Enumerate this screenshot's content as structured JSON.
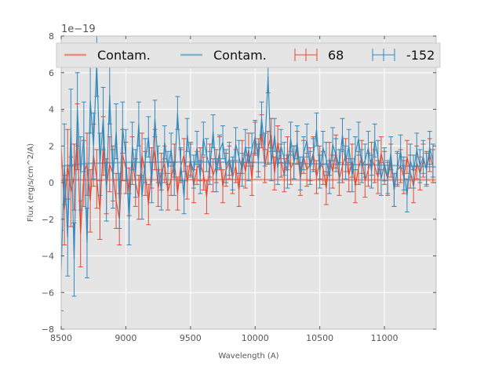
{
  "chart_data": {
    "type": "line",
    "title": "",
    "xlabel": "Wavelength (A)",
    "ylabel": "Flux (erg/s/cm^2/A)",
    "xlim": [
      8500,
      11400
    ],
    "ylim": [
      -8,
      8
    ],
    "y_scale_label": "1e−19",
    "x_ticks": [
      8500,
      9000,
      9500,
      10000,
      10500,
      11000
    ],
    "y_ticks": [
      -8,
      -6,
      -4,
      -2,
      0,
      2,
      4,
      6,
      8
    ],
    "y_tick_labels": [
      "−8",
      "−6",
      "−4",
      "−2",
      "0",
      "2",
      "4",
      "6",
      "8"
    ],
    "background_color": "#e5e5e5",
    "grid": true,
    "legend": {
      "placement": "top",
      "columns": 4
    },
    "series": [
      {
        "name": "Contam.",
        "kind": "contamination",
        "color": "#e8907c",
        "x": [
          8500,
          9000,
          9500,
          10000,
          10500,
          11000,
          11400
        ],
        "y": [
          0.15,
          0.15,
          0.16,
          0.16,
          0.15,
          0.15,
          0.15
        ]
      },
      {
        "name": "Contam.",
        "kind": "contamination",
        "color": "#7eb3d1",
        "x": [
          8500,
          8700,
          9000,
          9300,
          9600,
          10000,
          10300,
          10600,
          11000,
          11400
        ],
        "y": [
          0.9,
          1.05,
          1.1,
          1.12,
          1.12,
          1.1,
          1.05,
          1.0,
          0.95,
          0.85
        ]
      },
      {
        "name": "68",
        "kind": "spectrum",
        "color": "#e24a33",
        "x": [
          8500,
          8525,
          8550,
          8575,
          8600,
          8625,
          8650,
          8675,
          8700,
          8725,
          8750,
          8775,
          8800,
          8825,
          8850,
          8875,
          8900,
          8925,
          8950,
          8975,
          9000,
          9025,
          9050,
          9075,
          9100,
          9125,
          9150,
          9175,
          9200,
          9225,
          9250,
          9275,
          9300,
          9325,
          9350,
          9375,
          9400,
          9425,
          9450,
          9475,
          9500,
          9525,
          9550,
          9575,
          9600,
          9625,
          9650,
          9675,
          9700,
          9725,
          9750,
          9775,
          9800,
          9825,
          9850,
          9875,
          9900,
          9925,
          9950,
          9975,
          10000,
          10025,
          10050,
          10075,
          10100,
          10125,
          10150,
          10175,
          10200,
          10225,
          10250,
          10275,
          10300,
          10325,
          10350,
          10375,
          10400,
          10425,
          10450,
          10475,
          10500,
          10525,
          10550,
          10575,
          10600,
          10625,
          10650,
          10675,
          10700,
          10725,
          10750,
          10775,
          10800,
          10825,
          10850,
          10875,
          10900,
          10925,
          10950,
          10975,
          11000,
          11025,
          11050,
          11075,
          11100,
          11125,
          11150,
          11175,
          11200,
          11225,
          11250,
          11275,
          11300,
          11325,
          11350,
          11375
        ],
        "y": [
          2.0,
          -1.5,
          1.0,
          -0.5,
          0.3,
          2.5,
          -2.8,
          0.5,
          1.0,
          -1.0,
          1.5,
          0.2,
          -1.5,
          2.0,
          -0.2,
          1.0,
          0.5,
          -1.0,
          -2.0,
          1.5,
          0.8,
          -0.5,
          1.2,
          0.0,
          -0.8,
          1.5,
          0.5,
          -1.2,
          0.8,
          1.8,
          -0.3,
          0.6,
          1.0,
          -0.5,
          0.2,
          1.2,
          -0.6,
          0.9,
          1.5,
          0.0,
          1.3,
          -0.2,
          0.8,
          1.0,
          0.5,
          -0.8,
          1.2,
          0.4,
          0.9,
          1.6,
          -0.2,
          0.7,
          1.1,
          0.3,
          0.9,
          -0.4,
          1.4,
          0.6,
          1.8,
          0.2,
          2.4,
          1.5,
          2.8,
          0.9,
          1.9,
          2.6,
          0.5,
          2.2,
          1.2,
          0.4,
          1.6,
          0.8,
          1.1,
          1.9,
          0.2,
          1.4,
          0.7,
          1.0,
          1.6,
          0.3,
          1.1,
          0.8,
          -0.3,
          1.3,
          0.6,
          1.7,
          0.2,
          0.9,
          1.5,
          0.4,
          1.2,
          -0.2,
          0.8,
          1.4,
          0.1,
          0.7,
          1.3,
          0.9,
          0.3,
          1.6,
          0.8,
          0.2,
          1.2,
          -0.4,
          0.7,
          0.9,
          0.3,
          1.4,
          0.6,
          -0.2,
          1.1,
          0.5,
          1.2,
          0.8,
          1.5,
          0.9
        ],
        "err": [
          1.9,
          1.9,
          1.9,
          1.9,
          1.8,
          1.8,
          1.8,
          1.8,
          1.7,
          1.7,
          1.7,
          1.6,
          1.6,
          1.6,
          1.5,
          1.5,
          1.5,
          1.5,
          1.4,
          1.4,
          1.4,
          1.3,
          1.3,
          1.3,
          1.2,
          1.2,
          1.2,
          1.1,
          1.1,
          1.1,
          1.0,
          1.0,
          1.0,
          1.0,
          0.9,
          0.9,
          0.9,
          0.9,
          0.9,
          0.9,
          0.9,
          0.9,
          0.9,
          0.9,
          0.9,
          0.9,
          0.9,
          0.9,
          0.9,
          0.9,
          0.9,
          0.9,
          0.9,
          0.9,
          0.9,
          0.9,
          0.9,
          0.9,
          0.9,
          0.9,
          0.9,
          0.9,
          0.9,
          0.9,
          0.9,
          0.9,
          0.9,
          0.9,
          0.9,
          0.9,
          0.9,
          0.9,
          0.9,
          0.9,
          0.9,
          0.9,
          0.9,
          0.9,
          0.9,
          0.9,
          0.9,
          0.9,
          0.9,
          0.9,
          0.9,
          0.9,
          0.9,
          0.9,
          0.9,
          0.9,
          0.9,
          0.9,
          0.9,
          0.9,
          0.9,
          0.9,
          0.9,
          0.9,
          0.9,
          0.9,
          0.9,
          0.9,
          0.9,
          0.9,
          0.9,
          0.9,
          0.9,
          0.9,
          0.9,
          0.9,
          0.9,
          0.9,
          0.9,
          0.9,
          0.9,
          0.9
        ]
      },
      {
        "name": "-152",
        "kind": "spectrum",
        "color": "#348abd",
        "x": [
          8500,
          8525,
          8550,
          8575,
          8600,
          8625,
          8650,
          8675,
          8700,
          8725,
          8750,
          8775,
          8800,
          8825,
          8850,
          8875,
          8900,
          8925,
          8950,
          8975,
          9000,
          9025,
          9050,
          9075,
          9100,
          9125,
          9150,
          9175,
          9200,
          9225,
          9250,
          9275,
          9300,
          9325,
          9350,
          9375,
          9400,
          9425,
          9450,
          9475,
          9500,
          9525,
          9550,
          9575,
          9600,
          9625,
          9650,
          9675,
          9700,
          9725,
          9750,
          9775,
          9800,
          9825,
          9850,
          9875,
          9900,
          9925,
          9950,
          9975,
          10000,
          10025,
          10050,
          10075,
          10100,
          10125,
          10150,
          10175,
          10200,
          10225,
          10250,
          10275,
          10300,
          10325,
          10350,
          10375,
          10400,
          10425,
          10450,
          10475,
          10500,
          10525,
          10550,
          10575,
          10600,
          10625,
          10650,
          10675,
          10700,
          10725,
          10750,
          10775,
          10800,
          10825,
          10850,
          10875,
          10900,
          10925,
          10950,
          10975,
          11000,
          11025,
          11050,
          11075,
          11100,
          11125,
          11150,
          11175,
          11200,
          11225,
          11250,
          11275,
          11300,
          11325,
          11350,
          11375
        ],
        "y": [
          -4.8,
          1.0,
          -3.0,
          3.0,
          -4.2,
          4.0,
          0.5,
          2.5,
          -3.3,
          4.5,
          2.0,
          6.5,
          1.0,
          3.5,
          -0.5,
          4.8,
          0.2,
          2.8,
          -1.0,
          3.0,
          1.5,
          -2.0,
          2.0,
          0.5,
          3.2,
          -0.8,
          1.2,
          2.5,
          0.0,
          3.5,
          1.0,
          -0.5,
          2.2,
          0.8,
          1.8,
          0.2,
          3.8,
          1.0,
          -0.8,
          2.6,
          1.2,
          0.6,
          1.9,
          0.3,
          2.4,
          1.5,
          0.8,
          2.8,
          0.4,
          1.7,
          2.2,
          0.9,
          1.3,
          0.5,
          2.1,
          1.4,
          0.7,
          2.0,
          1.0,
          1.8,
          2.5,
          1.2,
          3.5,
          1.8,
          5.8,
          1.0,
          2.6,
          0.8,
          2.0,
          1.3,
          0.6,
          2.4,
          1.1,
          2.2,
          0.5,
          1.6,
          2.3,
          0.8,
          1.5,
          2.9,
          0.6,
          1.9,
          1.3,
          0.3,
          2.1,
          1.5,
          0.9,
          2.6,
          1.1,
          2.0,
          0.4,
          1.6,
          2.4,
          0.9,
          1.2,
          1.9,
          0.6,
          2.3,
          1.4,
          0.2,
          1.0,
          0.3,
          1.6,
          -0.4,
          0.8,
          1.7,
          0.5,
          -0.7,
          1.2,
          0.6,
          1.8,
          0.9,
          1.4,
          0.7,
          1.9,
          1.2
        ],
        "err": [
          2.2,
          2.2,
          2.1,
          2.1,
          2.0,
          2.0,
          2.0,
          1.9,
          1.9,
          1.8,
          1.8,
          1.8,
          1.7,
          1.7,
          1.6,
          1.6,
          1.6,
          1.5,
          1.5,
          1.4,
          1.4,
          1.4,
          1.3,
          1.3,
          1.2,
          1.2,
          1.2,
          1.1,
          1.1,
          1.0,
          1.0,
          1.0,
          0.9,
          0.9,
          0.9,
          0.9,
          0.9,
          0.9,
          0.9,
          0.9,
          0.9,
          0.9,
          0.9,
          0.9,
          0.9,
          0.9,
          0.9,
          0.9,
          0.9,
          0.9,
          0.9,
          0.9,
          0.9,
          0.9,
          0.9,
          0.9,
          0.9,
          0.9,
          0.9,
          0.9,
          0.9,
          0.9,
          0.9,
          0.9,
          0.9,
          0.9,
          0.9,
          0.9,
          0.9,
          0.9,
          0.9,
          0.9,
          0.9,
          0.9,
          0.9,
          0.9,
          0.9,
          0.9,
          0.9,
          0.9,
          0.9,
          0.9,
          0.9,
          0.9,
          0.9,
          0.9,
          0.9,
          0.9,
          0.9,
          0.9,
          0.9,
          0.9,
          0.9,
          0.9,
          0.9,
          0.9,
          0.9,
          0.9,
          0.9,
          0.9,
          0.9,
          0.9,
          0.9,
          0.9,
          0.9,
          0.9,
          0.9,
          0.9,
          0.9,
          0.9,
          0.9,
          0.9,
          0.9,
          0.9,
          0.9,
          0.9
        ]
      }
    ]
  }
}
